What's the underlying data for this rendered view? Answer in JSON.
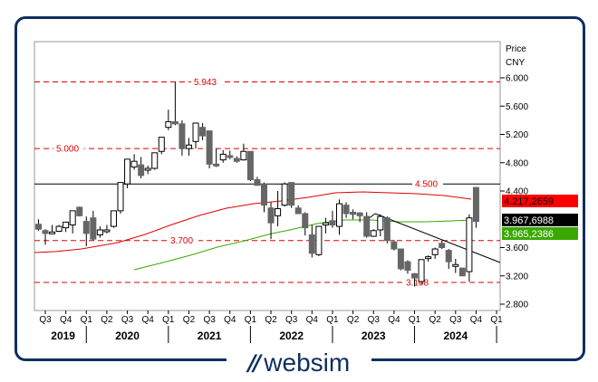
{
  "brand": {
    "name": "websim",
    "mark": "//",
    "color": "#0d2f5e"
  },
  "axis": {
    "y_title_1": "Price",
    "y_title_2": "CNY",
    "y_ticks": [
      "6.000",
      "5.600",
      "5.200",
      "4.800",
      "4.400",
      "3.600",
      "3.200",
      "2.800"
    ],
    "quarters": [
      "Q3",
      "Q4",
      "Q1",
      "Q2",
      "Q3",
      "Q4",
      "Q1",
      "Q2",
      "Q3",
      "Q4",
      "Q1",
      "Q2",
      "Q3",
      "Q4",
      "Q1",
      "Q2",
      "Q3",
      "Q4",
      "Q1",
      "Q2",
      "Q3",
      "Q4",
      "Q1"
    ],
    "years": [
      "2019",
      "2020",
      "2021",
      "2022",
      "2023",
      "2024"
    ]
  },
  "levels": [
    {
      "value": 5.943,
      "label": "5.943",
      "style": "dashed",
      "color": "#e00000"
    },
    {
      "value": 5.0,
      "label": "5.000",
      "style": "dashed",
      "color": "#e00000"
    },
    {
      "value": 4.5,
      "label": "4.500",
      "style": "solid",
      "color": "#000000"
    },
    {
      "value": 3.7,
      "label": "3.700",
      "style": "dashed",
      "color": "#e00000"
    },
    {
      "value": 3.108,
      "label": "3.108",
      "style": "dashed",
      "color": "#e00000"
    }
  ],
  "tags": [
    {
      "label": "4.217,2659",
      "bg": "#ff0000",
      "fg": "#000000"
    },
    {
      "label": "3.967,6988",
      "bg": "#000000",
      "fg": "#ffffff"
    },
    {
      "label": "3.965,2386",
      "bg": "#3aa800",
      "fg": "#ffffff"
    }
  ],
  "chart_data": {
    "type": "candlestick",
    "title": "",
    "xlabel": "",
    "ylabel": "Price CNY",
    "ylim": [
      2.8,
      6.0
    ],
    "period": "monthly",
    "x_range": [
      "2019-Q3",
      "2025-Q1"
    ],
    "candles": [
      {
        "o": 3.93,
        "h": 4.0,
        "l": 3.84,
        "c": 3.86
      },
      {
        "o": 3.84,
        "h": 3.86,
        "l": 3.64,
        "c": 3.8
      },
      {
        "o": 3.81,
        "h": 3.92,
        "l": 3.79,
        "c": 3.82
      },
      {
        "o": 3.83,
        "h": 3.92,
        "l": 3.82,
        "c": 3.9
      },
      {
        "o": 3.88,
        "h": 3.95,
        "l": 3.82,
        "c": 3.96
      },
      {
        "o": 3.92,
        "h": 3.98,
        "l": 3.8,
        "c": 4.12
      },
      {
        "o": 4.17,
        "h": 4.18,
        "l": 4.04,
        "c": 4.05
      },
      {
        "o": 3.97,
        "h": 4.04,
        "l": 3.62,
        "c": 3.8
      },
      {
        "o": 4.02,
        "h": 4.12,
        "l": 3.7,
        "c": 3.72
      },
      {
        "o": 3.78,
        "h": 3.9,
        "l": 3.74,
        "c": 3.85
      },
      {
        "o": 3.85,
        "h": 3.92,
        "l": 3.8,
        "c": 3.85
      },
      {
        "o": 3.9,
        "h": 4.12,
        "l": 3.88,
        "c": 4.12
      },
      {
        "o": 4.12,
        "h": 4.5,
        "l": 4.08,
        "c": 4.52
      },
      {
        "o": 4.5,
        "h": 4.85,
        "l": 4.44,
        "c": 4.85
      },
      {
        "o": 4.74,
        "h": 4.92,
        "l": 4.7,
        "c": 4.82
      },
      {
        "o": 4.77,
        "h": 4.88,
        "l": 4.58,
        "c": 4.62
      },
      {
        "o": 4.7,
        "h": 4.76,
        "l": 4.64,
        "c": 4.72
      },
      {
        "o": 4.72,
        "h": 4.92,
        "l": 4.7,
        "c": 4.94
      },
      {
        "o": 4.96,
        "h": 5.14,
        "l": 4.92,
        "c": 5.16
      },
      {
        "o": 5.3,
        "h": 5.55,
        "l": 5.26,
        "c": 5.38
      },
      {
        "o": 5.38,
        "h": 5.94,
        "l": 5.33,
        "c": 5.35
      },
      {
        "o": 5.35,
        "h": 5.4,
        "l": 4.9,
        "c": 5.0
      },
      {
        "o": 5.0,
        "h": 5.15,
        "l": 4.9,
        "c": 5.05
      },
      {
        "o": 5.1,
        "h": 5.37,
        "l": 5.0,
        "c": 5.36
      },
      {
        "o": 5.3,
        "h": 5.36,
        "l": 5.12,
        "c": 5.18
      },
      {
        "o": 5.25,
        "h": 5.25,
        "l": 4.72,
        "c": 4.78
      },
      {
        "o": 4.78,
        "h": 5.0,
        "l": 4.74,
        "c": 4.76
      },
      {
        "o": 4.84,
        "h": 4.98,
        "l": 4.8,
        "c": 4.92
      },
      {
        "o": 4.9,
        "h": 4.97,
        "l": 4.85,
        "c": 4.88
      },
      {
        "o": 4.86,
        "h": 4.89,
        "l": 4.8,
        "c": 4.82
      },
      {
        "o": 4.84,
        "h": 5.07,
        "l": 4.83,
        "c": 4.96
      },
      {
        "o": 4.96,
        "h": 4.96,
        "l": 4.54,
        "c": 4.56
      },
      {
        "o": 4.56,
        "h": 4.6,
        "l": 4.5,
        "c": 4.48
      },
      {
        "o": 4.5,
        "h": 4.52,
        "l": 4.1,
        "c": 4.2
      },
      {
        "o": 4.16,
        "h": 4.24,
        "l": 3.72,
        "c": 3.95
      },
      {
        "o": 4.05,
        "h": 4.4,
        "l": 3.9,
        "c": 4.15
      },
      {
        "o": 4.2,
        "h": 4.52,
        "l": 4.18,
        "c": 4.5
      },
      {
        "o": 4.52,
        "h": 4.52,
        "l": 4.16,
        "c": 4.2
      },
      {
        "o": 4.16,
        "h": 4.2,
        "l": 4.08,
        "c": 4.08
      },
      {
        "o": 4.08,
        "h": 4.1,
        "l": 3.77,
        "c": 3.88
      },
      {
        "o": 3.78,
        "h": 3.92,
        "l": 3.46,
        "c": 3.52
      },
      {
        "o": 3.5,
        "h": 3.9,
        "l": 3.48,
        "c": 3.9
      },
      {
        "o": 3.92,
        "h": 4.02,
        "l": 3.8,
        "c": 3.95
      },
      {
        "o": 3.98,
        "h": 4.12,
        "l": 3.88,
        "c": 3.92
      },
      {
        "o": 3.9,
        "h": 4.28,
        "l": 3.78,
        "c": 4.22
      },
      {
        "o": 4.2,
        "h": 4.24,
        "l": 4.02,
        "c": 4.08
      },
      {
        "o": 4.1,
        "h": 4.14,
        "l": 4.0,
        "c": 4.07
      },
      {
        "o": 4.09,
        "h": 4.1,
        "l": 3.96,
        "c": 4.05
      },
      {
        "o": 4.04,
        "h": 4.1,
        "l": 3.74,
        "c": 3.76
      },
      {
        "o": 3.76,
        "h": 3.86,
        "l": 3.75,
        "c": 3.84
      },
      {
        "o": 3.85,
        "h": 4.07,
        "l": 3.76,
        "c": 4.04
      },
      {
        "o": 4.02,
        "h": 4.04,
        "l": 3.66,
        "c": 3.7
      },
      {
        "o": 3.68,
        "h": 3.71,
        "l": 3.56,
        "c": 3.58
      },
      {
        "o": 3.58,
        "h": 3.58,
        "l": 3.28,
        "c": 3.3
      },
      {
        "o": 3.4,
        "h": 3.42,
        "l": 3.23,
        "c": 3.28
      },
      {
        "o": 3.23,
        "h": 3.24,
        "l": 3.05,
        "c": 3.17
      },
      {
        "o": 3.12,
        "h": 3.13,
        "l": 3.08,
        "c": 3.43
      },
      {
        "o": 3.45,
        "h": 3.49,
        "l": 3.4,
        "c": 3.47
      },
      {
        "o": 3.5,
        "h": 3.6,
        "l": 3.44,
        "c": 3.58
      },
      {
        "o": 3.66,
        "h": 3.7,
        "l": 3.58,
        "c": 3.6
      },
      {
        "o": 3.56,
        "h": 3.58,
        "l": 3.3,
        "c": 3.4
      },
      {
        "o": 3.36,
        "h": 3.44,
        "l": 3.24,
        "c": 3.36
      },
      {
        "o": 3.31,
        "h": 3.3,
        "l": 3.2,
        "c": 3.2
      },
      {
        "o": 3.26,
        "h": 4.07,
        "l": 3.12,
        "c": 4.02
      },
      {
        "o": 4.45,
        "h": 4.45,
        "l": 3.88,
        "c": 3.97
      }
    ],
    "moving_averages": [
      {
        "name": "Long MA (red)",
        "color": "#e00000",
        "last": 4.2172659
      },
      {
        "name": "Short MA (green)",
        "color": "#3aa800",
        "last": 3.9652386
      }
    ],
    "last_close": 3.9676988,
    "trendline": {
      "from": {
        "index": 50,
        "value": 4.1
      },
      "to": {
        "index": 68,
        "value": 3.38
      },
      "color": "#000000"
    },
    "horizontal_levels": [
      5.943,
      5.0,
      4.5,
      3.7,
      3.108
    ]
  }
}
